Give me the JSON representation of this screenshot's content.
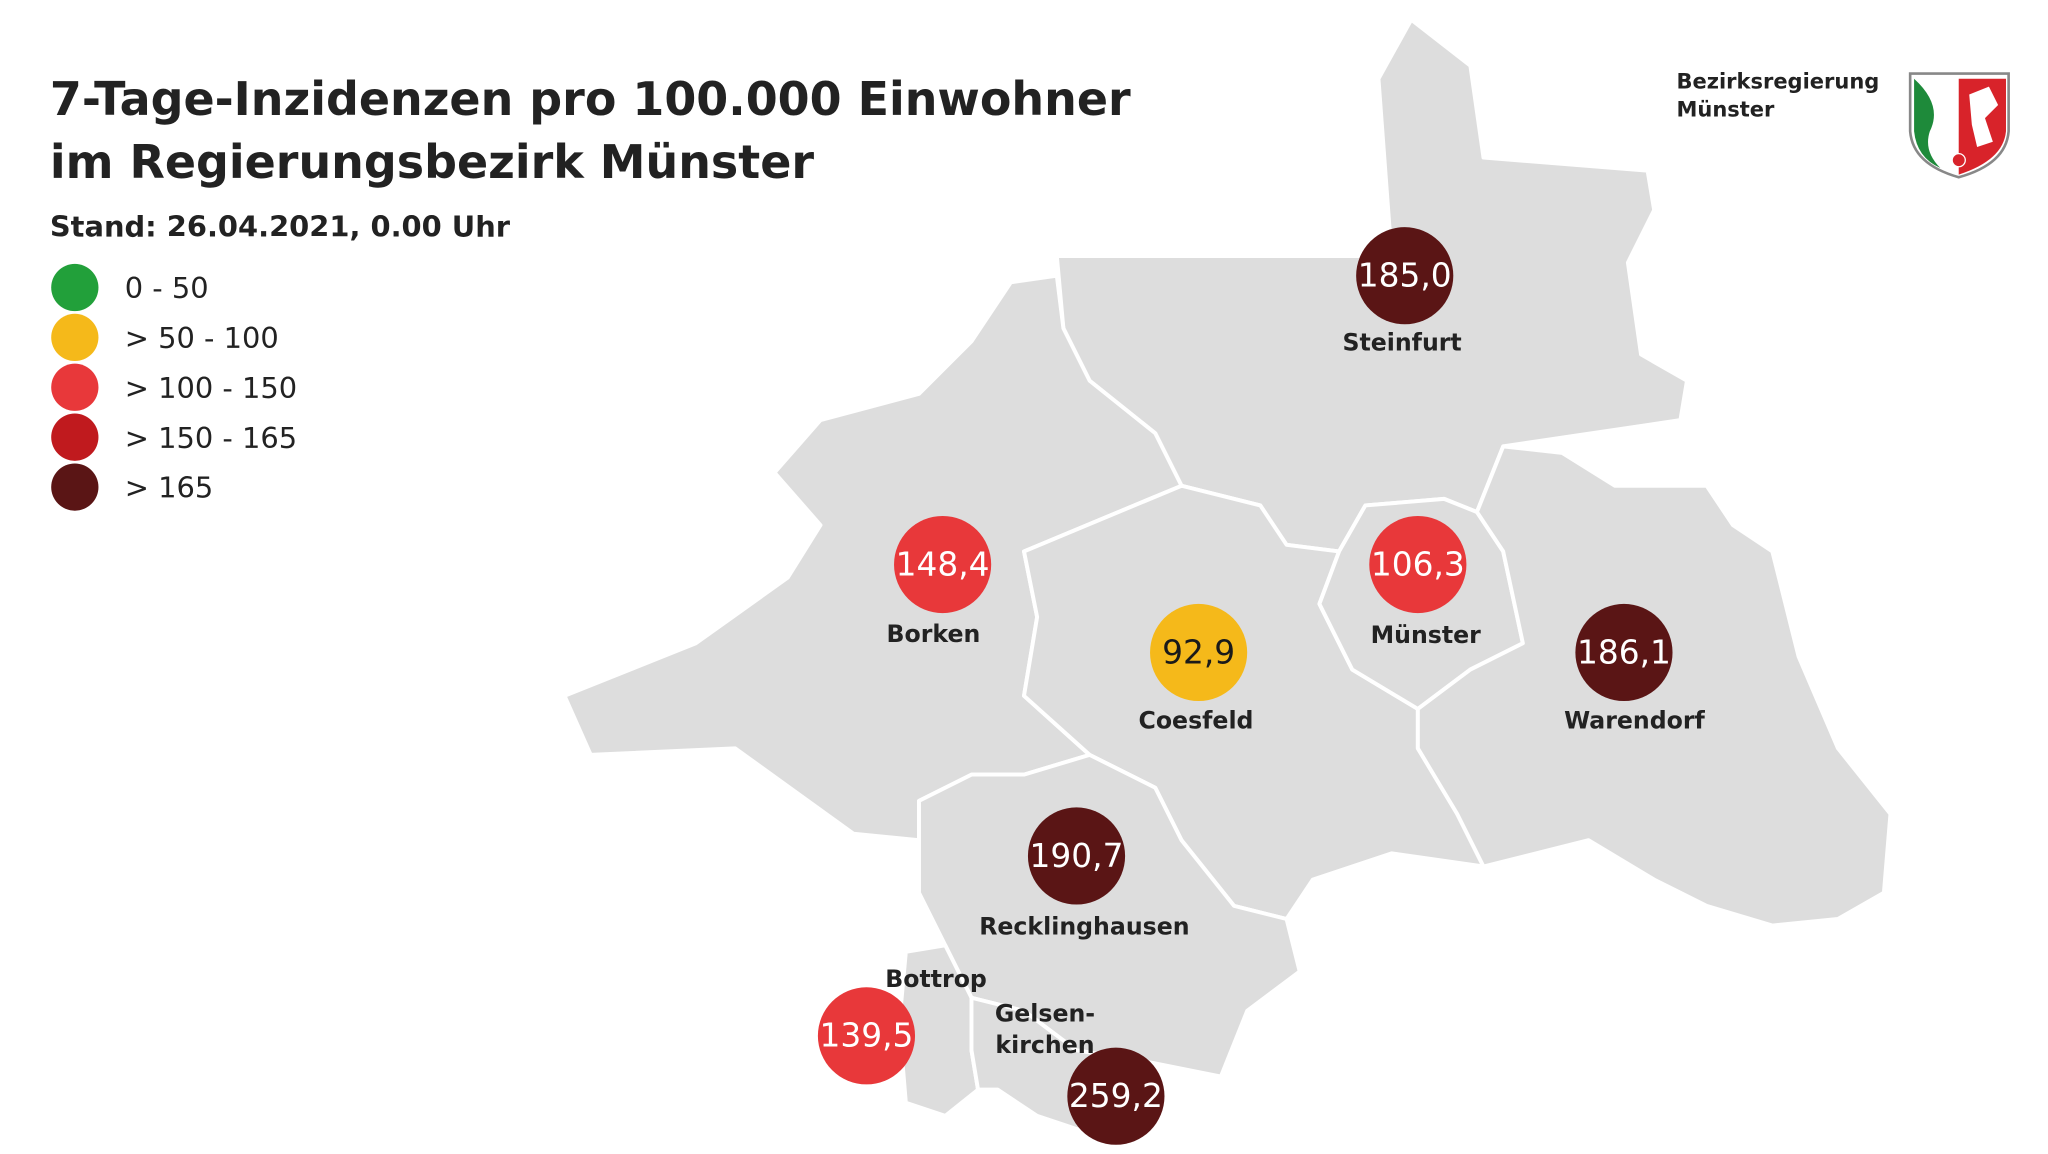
{
  "header": {
    "title_lines": [
      "7-Tage-Inzidenzen pro 100.000 Einwohner",
      "im Regierungsbezirk Münster"
    ],
    "stand": "Stand: 26.04.2021, 0.00 Uhr"
  },
  "logo": {
    "lines": [
      "Bezirksregierung",
      "Münster"
    ]
  },
  "legend": [
    {
      "label": "0 - 50",
      "color": "#22a03a"
    },
    {
      "label": "> 50 - 100",
      "color": "#f5b91a"
    },
    {
      "label": "> 100 - 150",
      "color": "#e8383a"
    },
    {
      "label": "> 150 - 165",
      "color": "#c01a1e"
    },
    {
      "label": "> 165",
      "color": "#5a1515"
    }
  ],
  "regions": [
    {
      "name": [
        "Steinfurt"
      ],
      "value": "185,0",
      "color": "#5a1515",
      "text_color": "#ffffff"
    },
    {
      "name": [
        "Borken"
      ],
      "value": "148,4",
      "color": "#e8383a",
      "text_color": "#ffffff"
    },
    {
      "name": [
        "Coesfeld"
      ],
      "value": "92,9",
      "color": "#f5b91a",
      "text_color": "#1a1a1a"
    },
    {
      "name": [
        "Münster"
      ],
      "value": "106,3",
      "color": "#e8383a",
      "text_color": "#ffffff"
    },
    {
      "name": [
        "Warendorf"
      ],
      "value": "186,1",
      "color": "#5a1515",
      "text_color": "#ffffff"
    },
    {
      "name": [
        "Recklinghausen"
      ],
      "value": "190,7",
      "color": "#5a1515",
      "text_color": "#ffffff"
    },
    {
      "name": [
        "Bottrop"
      ],
      "value": "139,5",
      "color": "#e8383a",
      "text_color": "#ffffff"
    },
    {
      "name": [
        "Gelsen-",
        "kirchen"
      ],
      "value": "259,2",
      "color": "#5a1515",
      "text_color": "#ffffff"
    }
  ]
}
